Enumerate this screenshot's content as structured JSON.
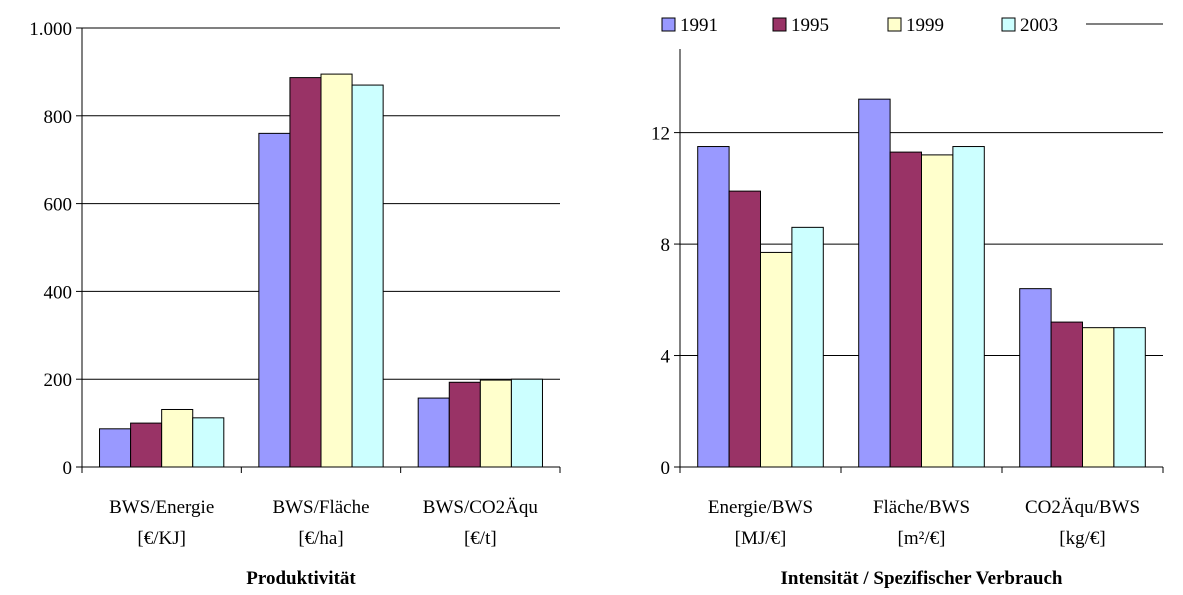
{
  "chart_data": [
    {
      "type": "bar",
      "title": "Produktivität",
      "categories": [
        [
          "BWS/Energie",
          "[€/KJ]"
        ],
        [
          "BWS/Fläche",
          "[€/ha]"
        ],
        [
          "BWS/CO2Äqu",
          "[€/t]"
        ]
      ],
      "series": [
        {
          "name": "1991",
          "values": [
            87,
            760,
            157
          ]
        },
        {
          "name": "1995",
          "values": [
            100,
            887,
            193
          ]
        },
        {
          "name": "1999",
          "values": [
            131,
            895,
            198
          ]
        },
        {
          "name": "2003",
          "values": [
            112,
            870,
            200
          ]
        }
      ],
      "ylim": [
        0,
        1000
      ],
      "yticks": [
        0,
        200,
        400,
        600,
        800,
        1000
      ],
      "ytick_labels": [
        "0",
        "200",
        "400",
        "600",
        "800",
        "1.000"
      ],
      "grid": true
    },
    {
      "type": "bar",
      "title": "Intensität / Spezifischer Verbrauch",
      "categories": [
        [
          "Energie/BWS",
          "[MJ/€]"
        ],
        [
          "Fläche/BWS",
          "[m²/€]"
        ],
        [
          "CO2Äqu/BWS",
          "[kg/€]"
        ]
      ],
      "series": [
        {
          "name": "1991",
          "values": [
            11.5,
            13.2,
            6.4
          ]
        },
        {
          "name": "1995",
          "values": [
            9.9,
            11.3,
            5.2
          ]
        },
        {
          "name": "1999",
          "values": [
            7.7,
            11.2,
            5.0
          ]
        },
        {
          "name": "2003",
          "values": [
            8.6,
            11.5,
            5.0
          ]
        }
      ],
      "ylim": [
        0,
        15
      ],
      "yticks": [
        0,
        4,
        8,
        12
      ],
      "ytick_labels": [
        "0",
        "4",
        "8",
        "12"
      ],
      "grid": true,
      "legend": "top"
    }
  ],
  "colors": {
    "1991": "#9999ff",
    "1995": "#993366",
    "1999": "#ffffcc",
    "2003": "#ccffff",
    "grid": "#000000",
    "axis": "#000000"
  }
}
